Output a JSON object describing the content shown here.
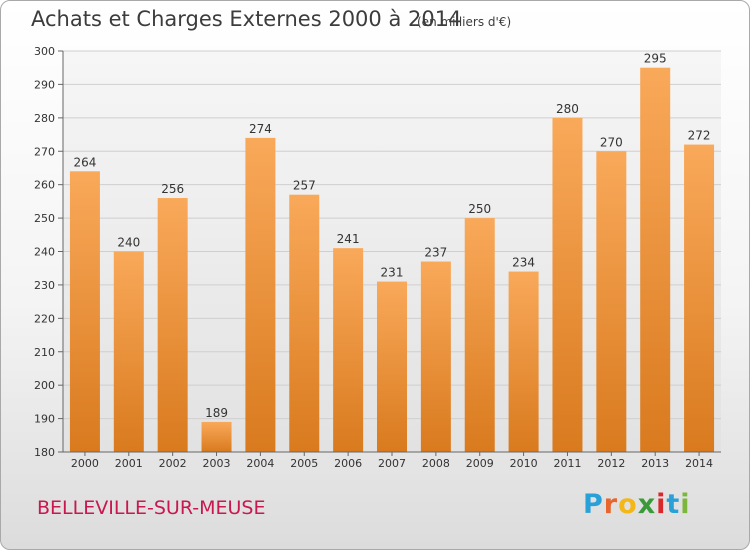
{
  "header": {
    "title": "Achats et Charges Externes 2000 à 2014",
    "subtitle": "(en milliers d'€)"
  },
  "footer": {
    "commune": "BELLEVILLE-SUR-MEUSE",
    "logo": "Proxiti",
    "logo_colors": [
      "#2aa0d8",
      "#e8652c",
      "#f4b718",
      "#3a9a3a",
      "#d8282c",
      "#2aa0d8",
      "#7bb73c"
    ]
  },
  "chart_data": {
    "type": "bar",
    "title": "Achats et Charges Externes 2000 à 2014",
    "subtitle": "(en milliers d'€)",
    "categories": [
      "2000",
      "2001",
      "2002",
      "2003",
      "2004",
      "2005",
      "2006",
      "2007",
      "2008",
      "2009",
      "2010",
      "2011",
      "2012",
      "2013",
      "2014"
    ],
    "values": [
      264,
      240,
      256,
      189,
      274,
      257,
      241,
      231,
      237,
      250,
      234,
      280,
      270,
      295,
      272
    ],
    "value_labels": [
      "264",
      "240",
      "256",
      "189",
      "274",
      "257",
      "241",
      "231",
      "237",
      "250",
      "234",
      "280",
      "270",
      "295",
      "272"
    ],
    "ylim": [
      180,
      300
    ],
    "yticks": [
      180,
      190,
      200,
      210,
      220,
      230,
      240,
      250,
      260,
      270,
      280,
      290,
      300
    ],
    "ytick_labels": [
      "180",
      "190",
      "200",
      "210",
      "220",
      "230",
      "240",
      "250",
      "260",
      "270",
      "280",
      "290",
      "300"
    ],
    "grid": true,
    "bar_color_top": "#f9a95a",
    "bar_color_bottom": "#d97a1e"
  }
}
